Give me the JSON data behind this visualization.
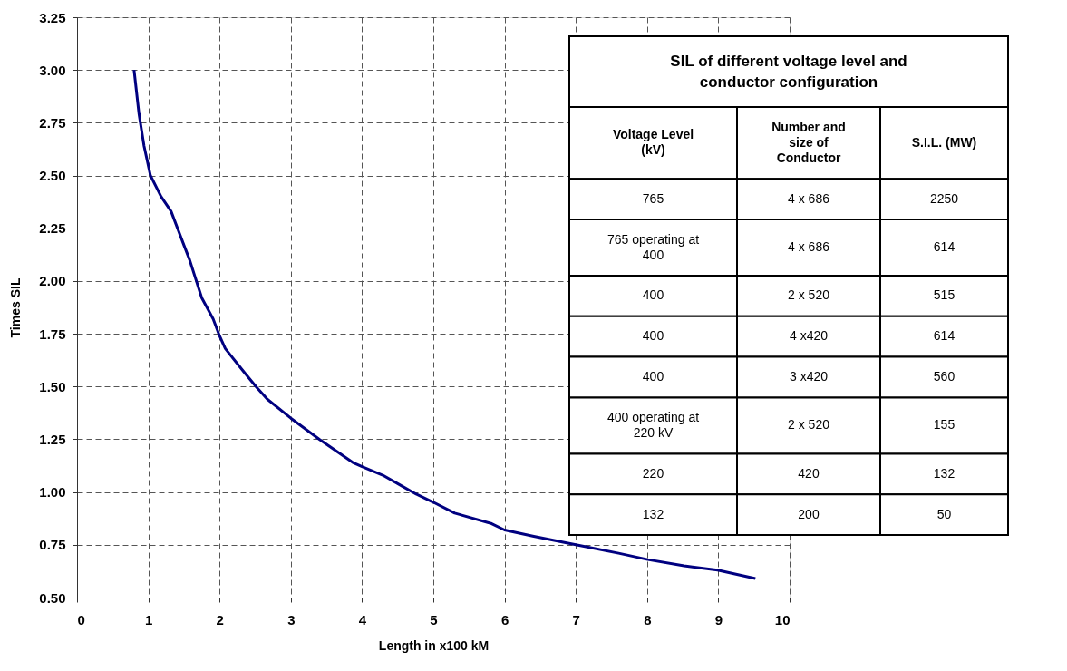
{
  "chart_data": {
    "type": "line",
    "xlabel": "Length in x100 kM",
    "ylabel": "Times SIL",
    "x": [
      0.8,
      0.82,
      0.87,
      0.94,
      1.03,
      1.18,
      1.32,
      1.5,
      1.58,
      1.75,
      1.91,
      2.0,
      2.08,
      2.34,
      2.51,
      2.67,
      3.0,
      3.4,
      3.87,
      4.0,
      4.29,
      4.55,
      4.76,
      5.01,
      5.3,
      5.82,
      6.0,
      6.41,
      7.0,
      7.6,
      8.01,
      8.52,
      8.99,
      9.52
    ],
    "series": [
      {
        "color": "#000080",
        "values": [
          3.0,
          2.94,
          2.79,
          2.64,
          2.5,
          2.4,
          2.33,
          2.17,
          2.1,
          1.92,
          1.82,
          1.74,
          1.68,
          1.57,
          1.5,
          1.44,
          1.35,
          1.25,
          1.14,
          1.12,
          1.08,
          1.03,
          0.99,
          0.95,
          0.9,
          0.85,
          0.82,
          0.79,
          0.75,
          0.71,
          0.68,
          0.65,
          0.63,
          0.59
        ]
      }
    ],
    "xlim": [
      0,
      10
    ],
    "xticks": [
      0,
      1,
      2,
      3,
      4,
      5,
      6,
      7,
      8,
      9,
      10
    ],
    "ylim": [
      0.5,
      3.25
    ],
    "yticks": [
      {
        "value": 0.5,
        "label": "0.50"
      },
      0.75,
      {
        "value": 1,
        "label": "1.00"
      },
      1.25,
      {
        "value": 1.5,
        "label": "1.50"
      },
      1.75,
      {
        "value": 2,
        "label": "2.00"
      },
      2.25,
      {
        "value": 2.5,
        "label": "2.50"
      },
      2.75,
      {
        "value": 3,
        "label": "3.00"
      },
      3.25
    ],
    "grid": true,
    "legend": false,
    "marker": "none",
    "line_style": "solid",
    "annotations": [
      "SIL of different voltage level and\nconductor configuration",
      "Voltage Level\n(kV)",
      "Number and\nsize of\nConductor",
      "S.I.L. (MW)",
      "765",
      "4 x 686",
      "2250",
      "765 operating at\n400",
      "4 x 686",
      "614",
      "400",
      "2 x 520",
      "515",
      "400",
      "4 x420",
      "614",
      "400",
      "3 x420",
      "560",
      "400 operating at\n220 kV",
      "2 x 520",
      "155",
      "220",
      "420",
      "132",
      "132",
      "200",
      "50"
    ]
  }
}
